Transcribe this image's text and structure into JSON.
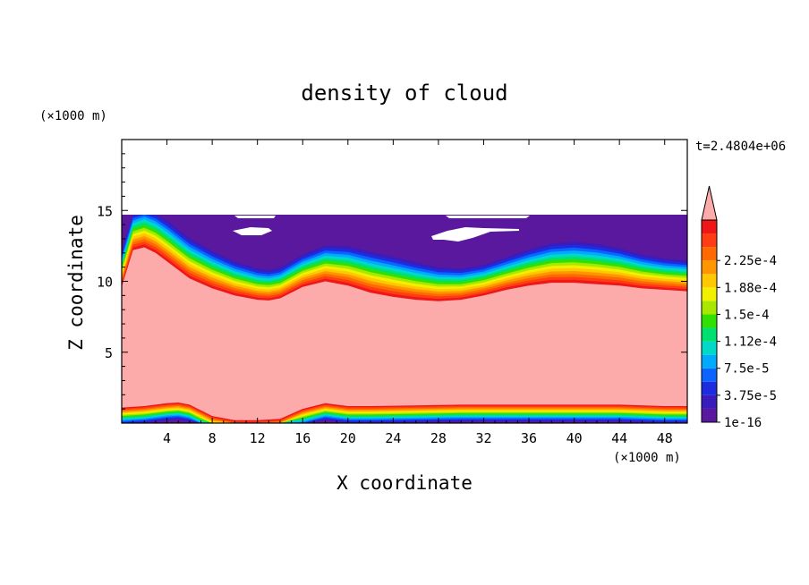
{
  "chart_data": {
    "type": "heatmap",
    "title": "density of cloud",
    "xlabel": "X coordinate",
    "ylabel": "Z coordinate",
    "x_unit": "(×1000 m)",
    "y_unit": "(×1000 m)",
    "time_label": "t=2.4804e+06",
    "xlim": [
      0,
      50
    ],
    "ylim": [
      0,
      20
    ],
    "x_ticks": [
      4,
      8,
      12,
      16,
      20,
      24,
      28,
      32,
      36,
      40,
      44,
      48
    ],
    "y_ticks": [
      5,
      10,
      15
    ],
    "colorbar": {
      "labels": [
        "1e-16",
        "3.75e-5",
        "7.5e-5",
        "1.12e-4",
        "1.5e-4",
        "1.88e-4",
        "2.25e-4"
      ],
      "colors": [
        "#5a189e",
        "#3a1cbc",
        "#1e2ce0",
        "#0a64ff",
        "#00aaff",
        "#00d8c8",
        "#00e070",
        "#30e000",
        "#a8e800",
        "#f0f000",
        "#ffc800",
        "#ff9600",
        "#ff6a00",
        "#ff3c14",
        "#ee1616"
      ],
      "over_color": "#fcaaaa"
    },
    "layers": {
      "cloud_top_z": 14.7,
      "cloud_core_top_profile": {
        "x": [
          0,
          1,
          2,
          3,
          4,
          6,
          8,
          10,
          12,
          13,
          14,
          16,
          18,
          20,
          22,
          24,
          26,
          28,
          30,
          32,
          34,
          36,
          38,
          40,
          42,
          44,
          46,
          48,
          50
        ],
        "z": [
          9.6,
          12.2,
          12.4,
          12.0,
          11.4,
          10.2,
          9.5,
          9.0,
          8.7,
          8.65,
          8.8,
          9.6,
          10.0,
          9.7,
          9.2,
          8.9,
          8.7,
          8.6,
          8.7,
          9.0,
          9.4,
          9.7,
          9.9,
          9.9,
          9.8,
          9.7,
          9.5,
          9.4,
          9.3
        ]
      },
      "cloud_base_profile": {
        "x": [
          0,
          2,
          4,
          5,
          6,
          7,
          8,
          10,
          12,
          14,
          16,
          18,
          20,
          22,
          26,
          30,
          36,
          40,
          44,
          48,
          50
        ],
        "z": [
          1.1,
          1.2,
          1.4,
          1.45,
          1.3,
          0.9,
          0.5,
          0.2,
          0.2,
          0.3,
          1.0,
          1.4,
          1.2,
          1.2,
          1.25,
          1.3,
          1.3,
          1.3,
          1.3,
          1.2,
          1.2
        ]
      }
    }
  }
}
